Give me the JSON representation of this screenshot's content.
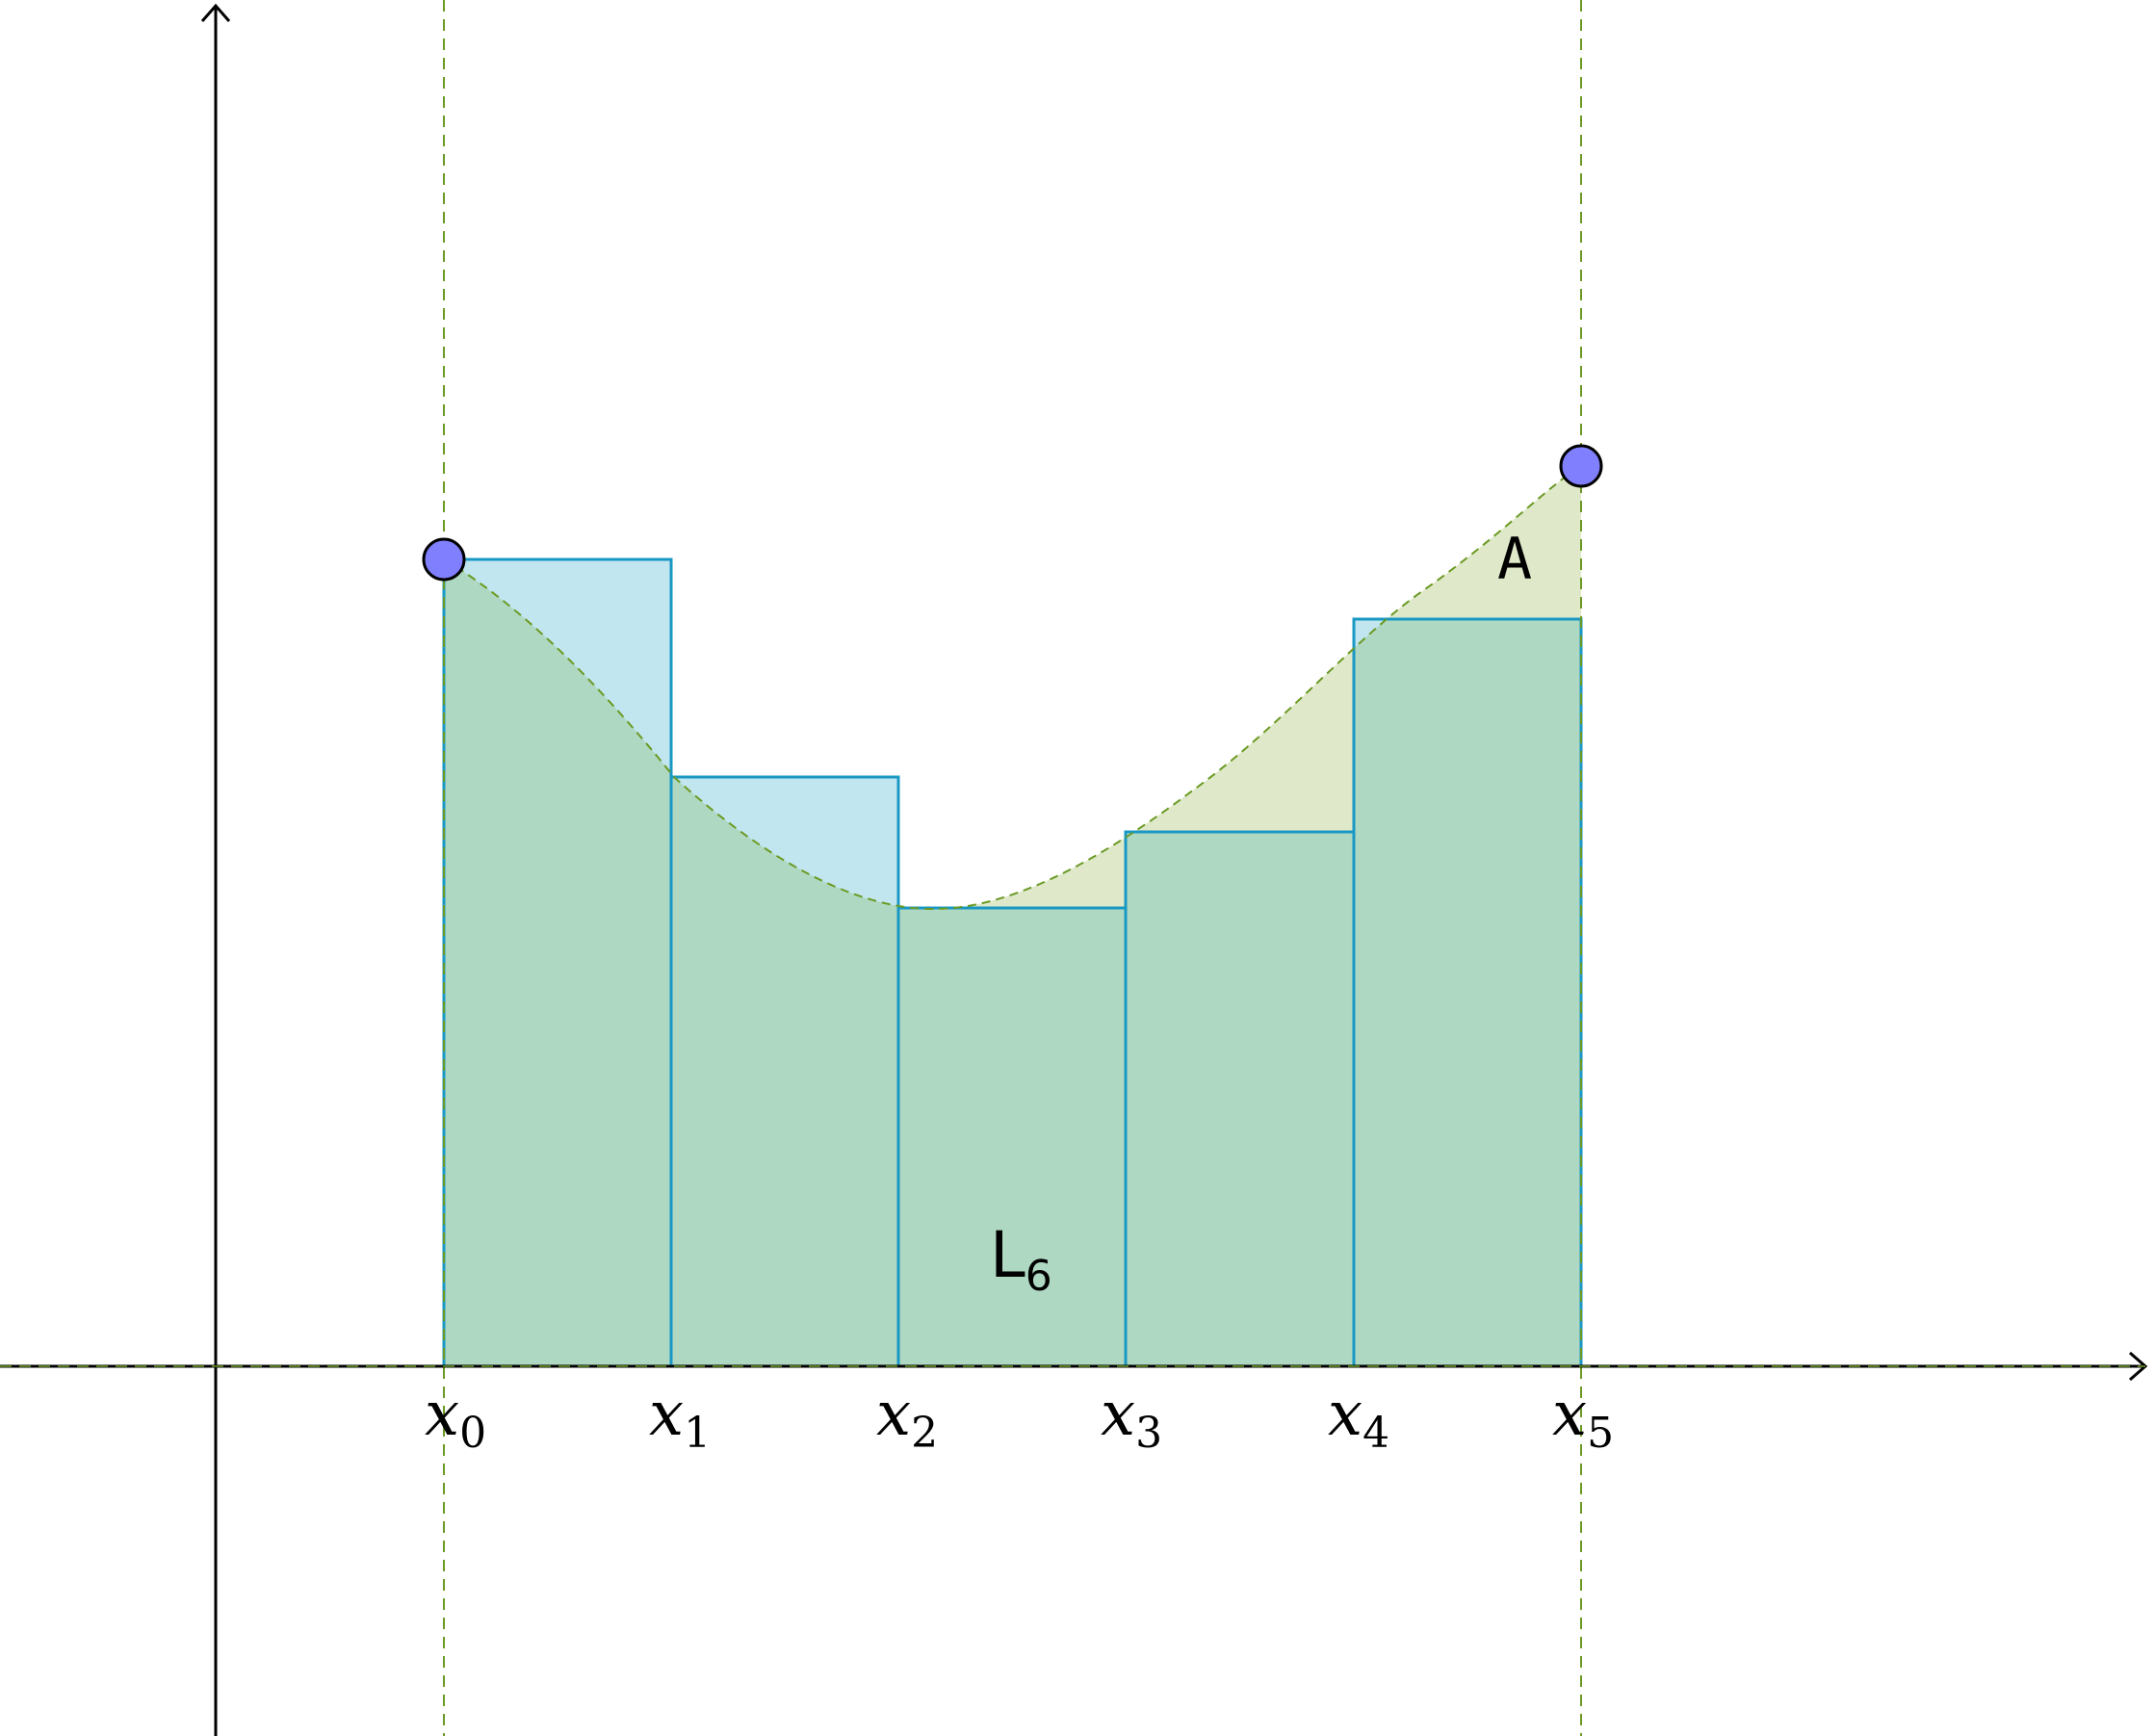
{
  "diagram": {
    "region_label": "A",
    "sum_label": {
      "main": "L",
      "sub": "6"
    },
    "tick_labels": [
      {
        "main": "x",
        "sub": "0"
      },
      {
        "main": "x",
        "sub": "1"
      },
      {
        "main": "x",
        "sub": "2"
      },
      {
        "main": "x",
        "sub": "3"
      },
      {
        "main": "x",
        "sub": "4"
      },
      {
        "main": "x",
        "sub": "5"
      }
    ],
    "colors": {
      "curve_fill": "#dfe9c9",
      "curve_stroke": "#6b9a24",
      "rect_upper_fill": "#c2e6f0",
      "rect_overlap_fill": "#aed8c2",
      "rect_stroke": "#1a98c4",
      "point_fill": "#8080ff",
      "axis": "#000000"
    }
  }
}
